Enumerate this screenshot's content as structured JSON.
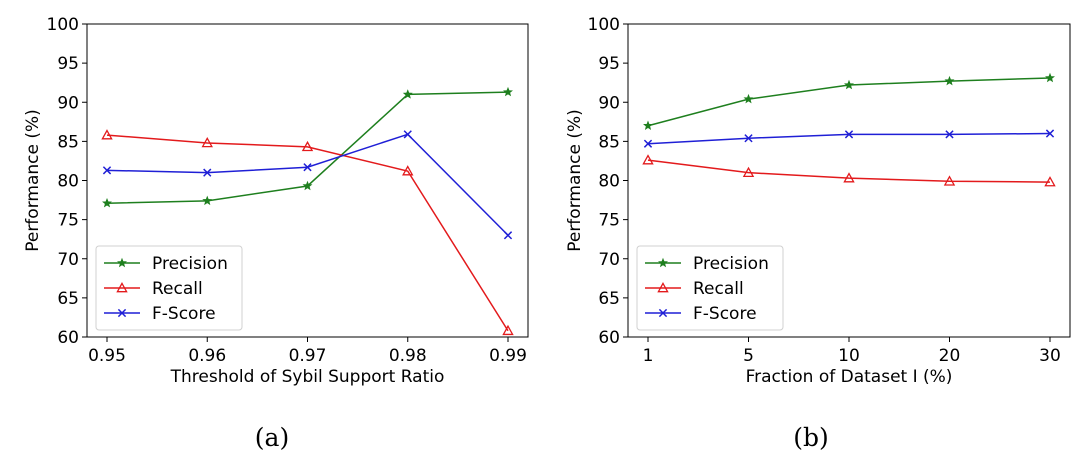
{
  "chart_data": [
    {
      "type": "line",
      "panel_label": "(a)",
      "xlabel": "Threshold of Sybil Support Ratio",
      "ylabel": "Performance (%)",
      "categories": [
        "0.95",
        "0.96",
        "0.97",
        "0.98",
        "0.99"
      ],
      "ylim": [
        60,
        100
      ],
      "yticks": [
        "60",
        "65",
        "70",
        "75",
        "80",
        "85",
        "90",
        "95",
        "100"
      ],
      "legend_position": "lower-left",
      "series": [
        {
          "name": "Precision",
          "color": "#1e7f1e",
          "marker": "star",
          "values": [
            77.1,
            77.4,
            79.3,
            91.0,
            91.3
          ]
        },
        {
          "name": "Recall",
          "color": "#e31a1c",
          "marker": "triangle",
          "values": [
            85.8,
            84.8,
            84.3,
            81.2,
            60.8
          ]
        },
        {
          "name": "F-Score",
          "color": "#1f1fd6",
          "marker": "x",
          "values": [
            81.3,
            81.0,
            81.7,
            85.9,
            73.0
          ]
        }
      ]
    },
    {
      "type": "line",
      "panel_label": "(b)",
      "xlabel": "Fraction of Dataset I (%)",
      "ylabel": "Performance (%)",
      "categories": [
        "1",
        "5",
        "10",
        "20",
        "30"
      ],
      "ylim": [
        60,
        100
      ],
      "yticks": [
        "60",
        "65",
        "70",
        "75",
        "80",
        "85",
        "90",
        "95",
        "100"
      ],
      "legend_position": "lower-left",
      "series": [
        {
          "name": "Precision",
          "color": "#1e7f1e",
          "marker": "star",
          "values": [
            87.0,
            90.4,
            92.2,
            92.7,
            93.1
          ]
        },
        {
          "name": "Recall",
          "color": "#e31a1c",
          "marker": "triangle",
          "values": [
            82.6,
            81.0,
            80.3,
            79.9,
            79.8
          ]
        },
        {
          "name": "F-Score",
          "color": "#1f1fd6",
          "marker": "x",
          "values": [
            84.7,
            85.4,
            85.9,
            85.9,
            86.0
          ]
        }
      ]
    }
  ]
}
